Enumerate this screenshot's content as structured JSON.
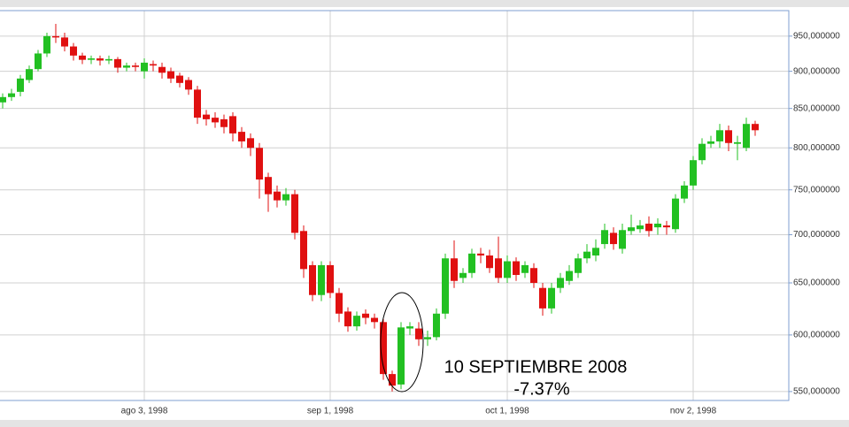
{
  "chart_data": {
    "type": "candlestick",
    "log_scale": true,
    "grid": true,
    "up_color": "#22c022",
    "down_color": "#e01010",
    "annotations": [
      "10 SEPTIEMBRE 2008",
      "-7.37%"
    ],
    "categories": [
      null,
      null,
      null,
      null,
      null,
      null,
      null,
      null,
      null,
      null,
      null,
      null,
      null,
      null,
      null,
      null,
      "ago 3, 1998",
      null,
      null,
      null,
      null,
      null,
      null,
      null,
      null,
      null,
      null,
      null,
      null,
      null,
      null,
      null,
      null,
      null,
      null,
      null,
      null,
      "sep 1, 1998",
      null,
      null,
      null,
      null,
      null,
      null,
      null,
      null,
      null,
      null,
      null,
      null,
      null,
      null,
      null,
      null,
      null,
      null,
      null,
      "oct 1, 1998",
      null,
      null,
      null,
      null,
      null,
      null,
      null,
      null,
      null,
      null,
      null,
      null,
      null,
      null,
      null,
      null,
      null,
      null,
      null,
      null,
      "nov 2, 1998",
      null,
      null,
      null,
      null,
      null,
      null,
      null
    ],
    "open": [
      858,
      865,
      872,
      888,
      903,
      925,
      950,
      948,
      935,
      922,
      916,
      918,
      915,
      917,
      905,
      908,
      900,
      910,
      906,
      900,
      894,
      888,
      875,
      842,
      838,
      836,
      840,
      820,
      812,
      800,
      765,
      748,
      738,
      745,
      704,
      668,
      638,
      668,
      640,
      622,
      608,
      620,
      616,
      612,
      565,
      556,
      606,
      606,
      596,
      598,
      620,
      675,
      655,
      660,
      680,
      678,
      675,
      655,
      672,
      660,
      665,
      645,
      625,
      645,
      652,
      660,
      675,
      678,
      690,
      702,
      685,
      704,
      706,
      712,
      708,
      710,
      706,
      740,
      755,
      785,
      805,
      808,
      822,
      805,
      800,
      830
    ],
    "close": [
      865,
      870,
      890,
      903,
      925,
      950,
      948,
      935,
      922,
      916,
      918,
      915,
      917,
      905,
      908,
      906,
      912,
      908,
      898,
      890,
      884,
      875,
      838,
      836,
      832,
      826,
      818,
      808,
      800,
      762,
      745,
      738,
      745,
      702,
      664,
      638,
      668,
      640,
      620,
      608,
      618,
      616,
      612,
      565,
      555,
      607,
      608,
      596,
      598,
      620,
      675,
      652,
      660,
      680,
      678,
      665,
      655,
      672,
      658,
      668,
      650,
      625,
      645,
      655,
      662,
      675,
      682,
      686,
      705,
      690,
      705,
      708,
      710,
      704,
      712,
      708,
      740,
      755,
      785,
      805,
      808,
      822,
      806,
      807,
      830,
      822
    ],
    "high": [
      870,
      876,
      895,
      908,
      930,
      955,
      968,
      955,
      940,
      926,
      922,
      922,
      922,
      920,
      912,
      912,
      918,
      915,
      912,
      905,
      898,
      892,
      880,
      848,
      845,
      842,
      845,
      826,
      818,
      806,
      770,
      755,
      752,
      750,
      710,
      672,
      672,
      672,
      645,
      626,
      622,
      624,
      620,
      615,
      568,
      612,
      612,
      612,
      604,
      625,
      680,
      694,
      665,
      685,
      686,
      684,
      698,
      678,
      676,
      672,
      670,
      650,
      650,
      660,
      668,
      680,
      690,
      695,
      712,
      708,
      712,
      722,
      716,
      720,
      718,
      715,
      745,
      760,
      790,
      812,
      815,
      830,
      828,
      815,
      838,
      834
    ],
    "low": [
      850,
      860,
      866,
      884,
      900,
      920,
      940,
      928,
      915,
      910,
      910,
      908,
      910,
      898,
      900,
      900,
      890,
      900,
      890,
      884,
      878,
      868,
      830,
      828,
      825,
      818,
      808,
      800,
      790,
      740,
      725,
      730,
      732,
      695,
      655,
      632,
      632,
      635,
      612,
      603,
      604,
      610,
      606,
      560,
      550,
      552,
      600,
      590,
      590,
      595,
      615,
      645,
      650,
      655,
      670,
      660,
      650,
      650,
      652,
      655,
      645,
      618,
      620,
      640,
      648,
      655,
      670,
      672,
      685,
      684,
      680,
      700,
      702,
      698,
      700,
      700,
      702,
      735,
      750,
      780,
      800,
      800,
      796,
      785,
      796,
      815
    ],
    "ylim": [
      542.5,
      988
    ],
    "yticks": [
      {
        "value": 550,
        "label": "550,000000"
      },
      {
        "value": 600,
        "label": "600,000000"
      },
      {
        "value": 650,
        "label": "650,000000"
      },
      {
        "value": 700,
        "label": "700,000000"
      },
      {
        "value": 750,
        "label": "750,000000"
      },
      {
        "value": 800,
        "label": "800,000000"
      },
      {
        "value": 850,
        "label": "850,000000"
      },
      {
        "value": 900,
        "label": "900,000000"
      },
      {
        "value": 950,
        "label": "950,000000"
      }
    ]
  }
}
